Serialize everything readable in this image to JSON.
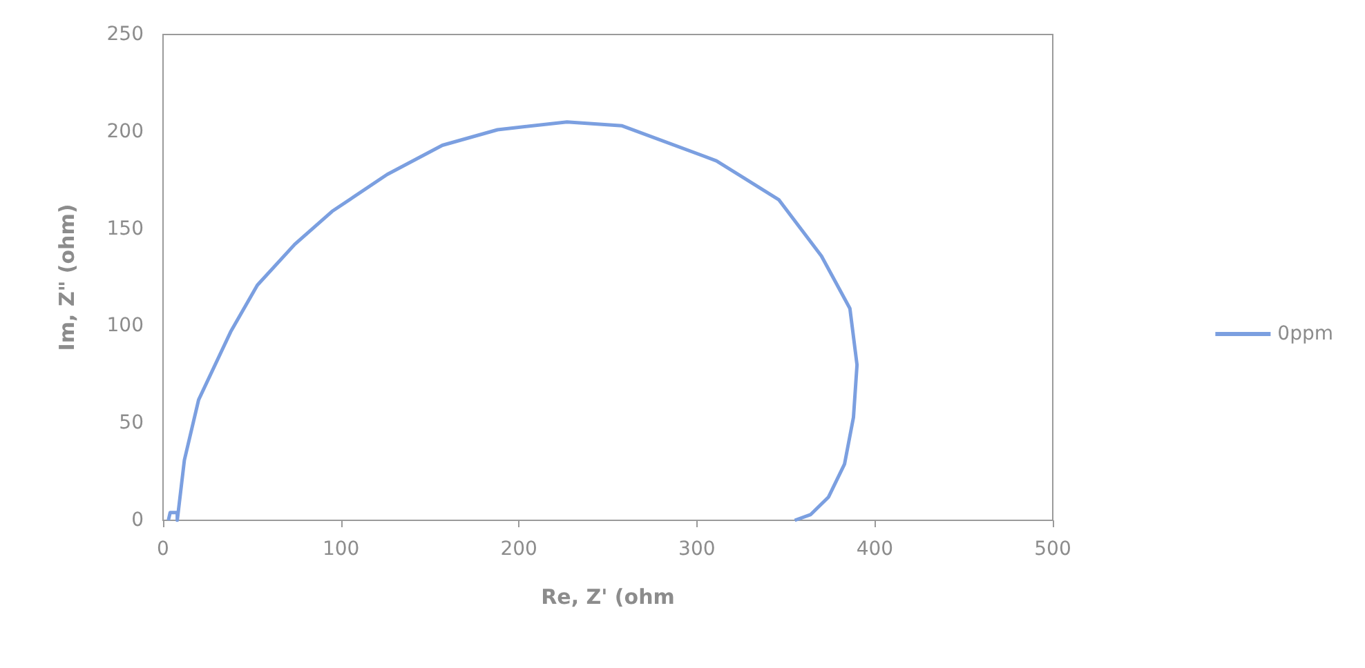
{
  "chart_data": {
    "type": "line",
    "xlabel": "Re, Z' (ohm",
    "ylabel": "Im, Z\" (ohm)",
    "xlim": [
      0,
      500
    ],
    "xticks": [
      0,
      100,
      200,
      300,
      400,
      500
    ],
    "ylim": [
      0,
      250
    ],
    "yticks": [
      0,
      50,
      100,
      150,
      200,
      250
    ],
    "grid": false,
    "legend": "right",
    "marker": "none",
    "line_style": "solid",
    "series": [
      {
        "name": "0ppm",
        "color": "#7b9fe0",
        "x": [
          3,
          4,
          8,
          8,
          12,
          20,
          38,
          53,
          74,
          95,
          126,
          157,
          188,
          227,
          258,
          311,
          346,
          370,
          386,
          390,
          388,
          383,
          374,
          364,
          355
        ],
        "values": [
          0,
          4,
          4,
          0,
          31,
          62,
          97,
          121,
          142,
          159,
          178,
          193,
          201,
          205,
          203,
          185,
          165,
          136,
          109,
          80,
          53,
          29,
          12,
          3,
          0
        ]
      }
    ]
  }
}
